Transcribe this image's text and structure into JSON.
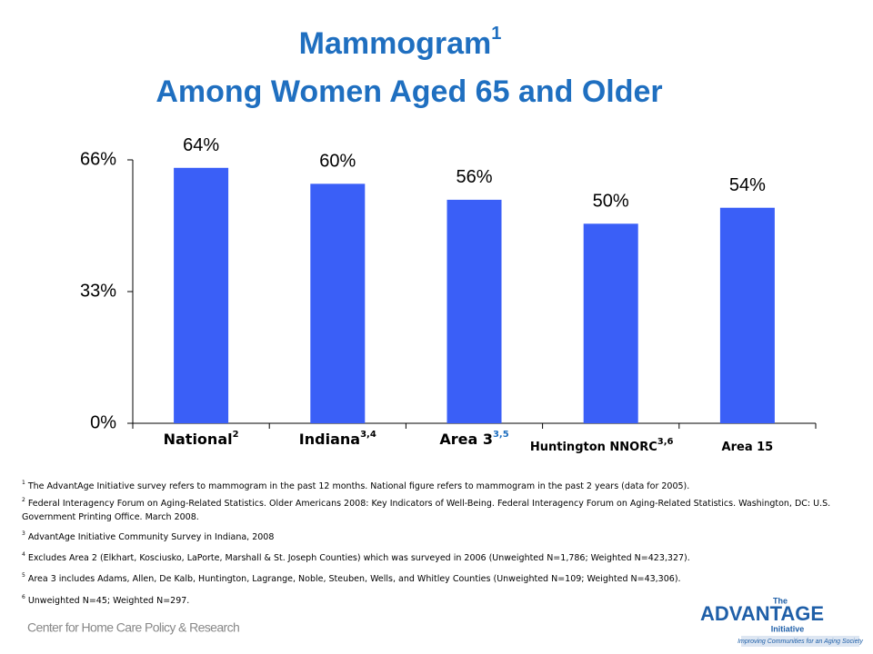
{
  "chart_data": {
    "type": "bar",
    "title": "Mammogram",
    "title_note": "1",
    "subtitle": "Among Women Aged 65 and Older",
    "categories": [
      "National",
      "Indiana",
      "Area 3",
      "Huntington NNORC",
      "Area 15"
    ],
    "category_notes": [
      "2",
      "3,4",
      "3,5",
      "3,6",
      null
    ],
    "values": [
      64,
      60,
      56,
      50,
      54
    ],
    "value_labels": [
      "64%",
      "60%",
      "56%",
      "50%",
      "54%"
    ],
    "color": "#3a5ff7",
    "ylim": [
      0,
      66
    ],
    "yticks": [
      {
        "value": 0,
        "label": "0%"
      },
      {
        "value": 33,
        "label": "33%"
      },
      {
        "value": 66,
        "label": "66%"
      }
    ],
    "grid": false
  },
  "footnotes": [
    {
      "number": "1",
      "text": "The AdvantAge Initiative survey refers to mammogram in the past 12 months.  National figure refers to mammogram in the past 2 years (data for 2005)."
    },
    {
      "number": "2",
      "text": "Federal Interagency Forum on Aging-Related Statistics. Older Americans 2008: Key Indicators of Well-Being. Federal Interagency Forum on Aging-Related Statistics. Washington, DC: U.S. Government Printing Office. March 2008."
    },
    {
      "number": "3",
      "text": "AdvantAge Initiative Community Survey in Indiana, 2008"
    },
    {
      "number": "4",
      "text": "Excludes Area 2 (Elkhart, Kosciusko, LaPorte, Marshall & St. Joseph Counties) which was surveyed in 2006 (Unweighted N=1,786; Weighted N=423,327)."
    },
    {
      "number": "5",
      "text": "Area 3 includes Adams, Allen, De Kalb, Huntington, Lagrange, Noble, Steuben, Wells, and Whitley Counties (Unweighted N=109; Weighted N=43,306)."
    },
    {
      "number": "6",
      "text": "Unweighted N=45; Weighted N=297."
    }
  ],
  "footer": {
    "left_logo": "Center for Home Care Policy & Research",
    "right_logo_the": "The",
    "right_logo": "ADVANTAGE",
    "right_logo_sub": "Initiative",
    "right_logo_tagline": "Improving Communities for an Aging Society"
  }
}
